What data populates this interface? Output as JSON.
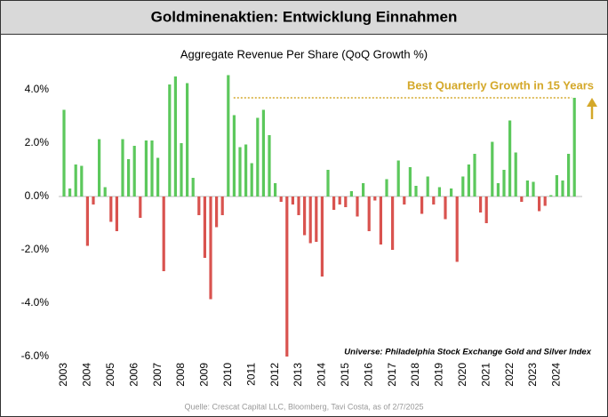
{
  "chart_data": {
    "type": "bar",
    "title": "Goldminenaktien: Entwicklung Einnahmen",
    "subtitle": "Aggregate Revenue Per Share (QoQ Growth %)",
    "annotation": "Best Quarterly Growth in 15 Years",
    "note": "Universe: Philadelphia Stock Exchange Gold and Silver Index",
    "source": "Quelle: Crescat Capital LLC, Bloomberg, Tavi Costa, as of 2/7/2025",
    "categories": [
      "2003",
      null,
      null,
      null,
      "2004",
      null,
      null,
      null,
      "2005",
      null,
      null,
      null,
      "2006",
      null,
      null,
      null,
      "2007",
      null,
      null,
      null,
      "2008",
      null,
      null,
      null,
      "2009",
      null,
      null,
      null,
      "2010",
      null,
      null,
      null,
      "2011",
      null,
      null,
      null,
      "2012",
      null,
      null,
      null,
      "2013",
      null,
      null,
      null,
      "2014",
      null,
      null,
      null,
      "2015",
      null,
      null,
      null,
      "2016",
      null,
      null,
      null,
      "2017",
      null,
      null,
      null,
      "2018",
      null,
      null,
      null,
      "2019",
      null,
      null,
      null,
      "2020",
      null,
      null,
      null,
      "2021",
      null,
      null,
      null,
      "2022",
      null,
      null,
      null,
      "2023",
      null,
      null,
      null,
      "2024",
      null,
      null,
      null
    ],
    "values": [
      3.25,
      0.3,
      1.2,
      1.15,
      -1.85,
      -0.3,
      2.15,
      0.35,
      -0.95,
      -1.3,
      2.15,
      1.4,
      1.9,
      -0.8,
      2.1,
      2.1,
      1.45,
      -2.8,
      4.2,
      4.5,
      2.0,
      4.25,
      0.7,
      -0.7,
      -2.3,
      -3.85,
      -1.15,
      -0.7,
      4.55,
      3.05,
      1.85,
      1.95,
      1.25,
      2.95,
      3.25,
      2.3,
      0.5,
      -0.2,
      -6.0,
      -0.3,
      -0.7,
      -1.45,
      -1.75,
      -1.7,
      -3.0,
      1.0,
      -0.5,
      -0.3,
      -0.4,
      0.2,
      -0.75,
      0.5,
      -1.3,
      -0.15,
      -1.8,
      0.65,
      -2.0,
      1.35,
      -0.3,
      1.1,
      0.4,
      -0.65,
      0.75,
      -0.3,
      0.35,
      -0.85,
      0.3,
      -2.45,
      0.75,
      1.2,
      1.6,
      -0.6,
      -1.0,
      2.05,
      0.5,
      1.0,
      2.85,
      1.65,
      -0.2,
      0.6,
      0.55,
      -0.55,
      -0.35,
      0.05,
      0.8,
      0.6,
      1.6,
      3.7
    ],
    "colors": {
      "positive": "#5cc85c",
      "negative": "#d9534f",
      "annotation": "#d4a82a"
    },
    "ylim": [
      -6.3,
      5.0
    ],
    "yticks": [
      {
        "value": 4,
        "label": "4.0%"
      },
      {
        "value": 2,
        "label": "2.0%"
      },
      {
        "value": 0,
        "label": "0.0%"
      },
      {
        "value": -2,
        "label": "-2.0%"
      },
      {
        "value": -4,
        "label": "-4.0%"
      },
      {
        "value": -6,
        "label": "-6.0%"
      }
    ]
  }
}
